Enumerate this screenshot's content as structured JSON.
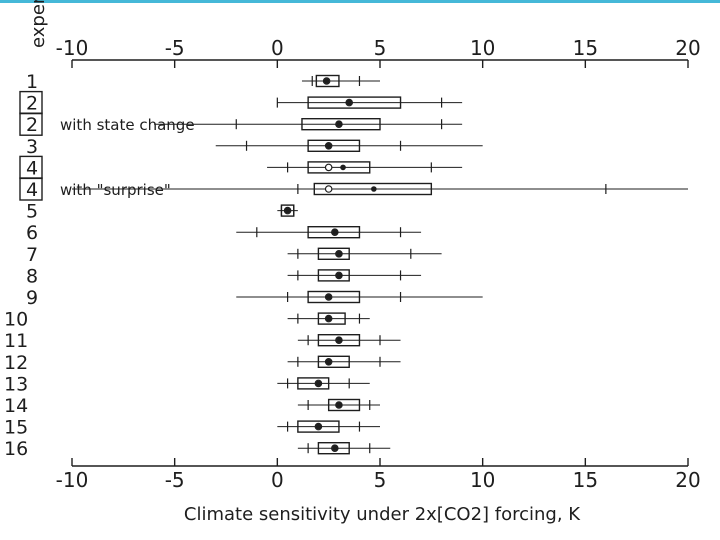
{
  "chart_data": {
    "type": "box",
    "ylabel": "expert",
    "xlabel": "Climate sensitivity under 2x[CO2]  forcing, K",
    "xlim": [
      -10,
      20
    ],
    "xticks": [
      -10,
      -5,
      0,
      5,
      10,
      15,
      20
    ],
    "grid": false,
    "legend": "none",
    "colors": {
      "ink": "#1e1e1e",
      "accent": "#45b8d8"
    },
    "rows": [
      {
        "label": "1",
        "boxed": false,
        "note": "",
        "low": 1.2,
        "p5": 1.7,
        "q1": 1.9,
        "median": 2.4,
        "mean": 2.4,
        "q3": 3.0,
        "p95": 4.0,
        "high": 5.0
      },
      {
        "label": "2",
        "boxed": true,
        "note": "",
        "low": 0.0,
        "p5": 0.0,
        "q1": 1.5,
        "median": 3.5,
        "mean": 3.5,
        "q3": 6.0,
        "p95": 8.0,
        "high": 9.0
      },
      {
        "label": "2",
        "boxed": true,
        "note": "with state change",
        "low": -6.0,
        "p5": -2.0,
        "q1": 1.2,
        "median": 3.0,
        "mean": 3.0,
        "q3": 5.0,
        "p95": 8.0,
        "high": 9.0
      },
      {
        "label": "3",
        "boxed": false,
        "note": "",
        "low": -3.0,
        "p5": -1.5,
        "q1": 1.5,
        "median": 2.5,
        "mean": 2.5,
        "q3": 4.0,
        "p95": 6.0,
        "high": 10.0
      },
      {
        "label": "4",
        "boxed": true,
        "note": "",
        "low": -0.5,
        "p5": 0.5,
        "q1": 1.5,
        "median": 2.5,
        "mean": 3.2,
        "q3": 4.5,
        "p95": 7.5,
        "high": 9.0
      },
      {
        "label": "4",
        "boxed": true,
        "note": "with \"surprise\"",
        "low": -10.0,
        "p5": 1.0,
        "q1": 1.8,
        "median": 2.5,
        "mean": 4.7,
        "q3": 7.5,
        "p95": 16.0,
        "high": 20.0
      },
      {
        "label": "5",
        "boxed": false,
        "note": "",
        "low": 0.0,
        "p5": 0.2,
        "q1": 0.2,
        "median": 0.5,
        "mean": 0.5,
        "q3": 0.8,
        "p95": 0.8,
        "high": 1.0
      },
      {
        "label": "6",
        "boxed": false,
        "note": "",
        "low": -2.0,
        "p5": -1.0,
        "q1": 1.5,
        "median": 2.8,
        "mean": 2.8,
        "q3": 4.0,
        "p95": 6.0,
        "high": 7.0
      },
      {
        "label": "7",
        "boxed": false,
        "note": "",
        "low": 0.5,
        "p5": 1.0,
        "q1": 2.0,
        "median": 3.0,
        "mean": 3.0,
        "q3": 3.5,
        "p95": 6.5,
        "high": 8.0
      },
      {
        "label": "8",
        "boxed": false,
        "note": "",
        "low": 0.5,
        "p5": 1.0,
        "q1": 2.0,
        "median": 3.0,
        "mean": 3.0,
        "q3": 3.5,
        "p95": 6.0,
        "high": 7.0
      },
      {
        "label": "9",
        "boxed": false,
        "note": "",
        "low": -2.0,
        "p5": 0.5,
        "q1": 1.5,
        "median": 2.5,
        "mean": 2.5,
        "q3": 4.0,
        "p95": 6.0,
        "high": 10.0
      },
      {
        "label": "10",
        "boxed": false,
        "note": "",
        "low": 0.5,
        "p5": 1.0,
        "q1": 2.0,
        "median": 2.5,
        "mean": 2.5,
        "q3": 3.3,
        "p95": 4.0,
        "high": 4.5
      },
      {
        "label": "11",
        "boxed": false,
        "note": "",
        "low": 1.0,
        "p5": 1.5,
        "q1": 2.0,
        "median": 3.0,
        "mean": 3.0,
        "q3": 4.0,
        "p95": 5.0,
        "high": 6.0
      },
      {
        "label": "12",
        "boxed": false,
        "note": "",
        "low": 0.5,
        "p5": 1.0,
        "q1": 2.0,
        "median": 2.5,
        "mean": 2.5,
        "q3": 3.5,
        "p95": 5.0,
        "high": 6.0
      },
      {
        "label": "13",
        "boxed": false,
        "note": "",
        "low": 0.0,
        "p5": 0.5,
        "q1": 1.0,
        "median": 2.0,
        "mean": 2.0,
        "q3": 2.5,
        "p95": 3.5,
        "high": 4.5
      },
      {
        "label": "14",
        "boxed": false,
        "note": "",
        "low": 1.0,
        "p5": 1.5,
        "q1": 2.5,
        "median": 3.0,
        "mean": 3.0,
        "q3": 4.0,
        "p95": 4.5,
        "high": 5.0
      },
      {
        "label": "15",
        "boxed": false,
        "note": "",
        "low": 0.0,
        "p5": 0.5,
        "q1": 1.0,
        "median": 2.0,
        "mean": 2.0,
        "q3": 3.0,
        "p95": 4.0,
        "high": 5.0
      },
      {
        "label": "16",
        "boxed": false,
        "note": "",
        "low": 1.0,
        "p5": 1.5,
        "q1": 2.0,
        "median": 2.8,
        "mean": 2.8,
        "q3": 3.5,
        "p95": 4.5,
        "high": 5.5
      }
    ]
  }
}
